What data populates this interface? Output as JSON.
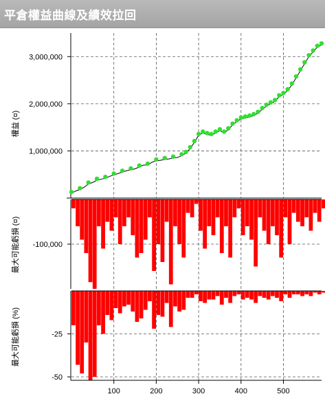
{
  "window": {
    "title": "平倉權益曲線及績效拉回"
  },
  "colors": {
    "equity_line": "#000000",
    "equity_marker": "#33dd33",
    "drawdown_fill": "#ff0000",
    "grid": "#555555"
  },
  "chart_data": [
    {
      "type": "line",
      "ylabel": "權益 (¤)",
      "yticks": [
        "3,000,000",
        "2,000,000",
        "1,000,000"
      ],
      "ytick_values": [
        3000000,
        2000000,
        1000000
      ],
      "ylim": [
        0,
        3500000
      ],
      "xlim": [
        0,
        590
      ],
      "x": [
        0,
        10,
        20,
        30,
        40,
        50,
        60,
        70,
        80,
        90,
        100,
        110,
        120,
        130,
        140,
        150,
        160,
        170,
        180,
        190,
        200,
        210,
        220,
        230,
        240,
        250,
        260,
        270,
        280,
        290,
        300,
        310,
        320,
        330,
        340,
        350,
        360,
        370,
        380,
        390,
        400,
        410,
        420,
        430,
        440,
        450,
        460,
        470,
        480,
        490,
        500,
        510,
        520,
        530,
        540,
        550,
        560,
        570,
        580,
        590
      ],
      "values": [
        100000,
        150000,
        180000,
        230000,
        300000,
        330000,
        380000,
        400000,
        420000,
        460000,
        490000,
        520000,
        550000,
        580000,
        600000,
        620000,
        660000,
        700000,
        700000,
        760000,
        790000,
        800000,
        820000,
        830000,
        850000,
        860000,
        900000,
        950000,
        1050000,
        1180000,
        1330000,
        1380000,
        1350000,
        1330000,
        1380000,
        1430000,
        1380000,
        1450000,
        1550000,
        1620000,
        1680000,
        1700000,
        1720000,
        1750000,
        1800000,
        1880000,
        1950000,
        2000000,
        2050000,
        2150000,
        2200000,
        2280000,
        2400000,
        2550000,
        2700000,
        2850000,
        3000000,
        3100000,
        3200000,
        3250000
      ]
    },
    {
      "type": "area",
      "ylabel": "最大可能虧損 (¤)",
      "yticks": [
        "-100,000"
      ],
      "ytick_values": [
        -100000
      ],
      "ylim": [
        -200000,
        0
      ],
      "xlim": [
        0,
        590
      ],
      "x": [
        0,
        10,
        20,
        30,
        40,
        50,
        60,
        70,
        80,
        90,
        100,
        110,
        120,
        130,
        140,
        150,
        160,
        170,
        180,
        190,
        200,
        210,
        220,
        230,
        240,
        250,
        260,
        270,
        280,
        290,
        300,
        310,
        320,
        330,
        340,
        350,
        360,
        370,
        380,
        390,
        400,
        410,
        420,
        430,
        440,
        450,
        460,
        470,
        480,
        490,
        500,
        510,
        520,
        530,
        540,
        550,
        560,
        570,
        580,
        590
      ],
      "values": [
        -20000,
        -60000,
        -90000,
        -120000,
        -185000,
        -200000,
        -60000,
        -110000,
        -50000,
        -70000,
        -40000,
        -100000,
        -60000,
        -40000,
        -80000,
        -130000,
        -120000,
        -90000,
        -40000,
        -160000,
        -100000,
        -140000,
        -50000,
        -190000,
        -60000,
        -100000,
        -130000,
        -30000,
        -40000,
        -10000,
        -70000,
        -110000,
        -60000,
        -80000,
        -40000,
        -120000,
        -60000,
        -130000,
        -40000,
        -20000,
        -80000,
        -60000,
        -90000,
        -150000,
        -40000,
        -70000,
        -100000,
        -60000,
        -80000,
        -130000,
        -40000,
        -100000,
        -30000,
        -50000,
        -60000,
        -40000,
        -70000,
        -30000,
        -50000,
        -20000
      ]
    },
    {
      "type": "area",
      "ylabel": "最大可能虧損 (%)",
      "yticks": [
        "-25",
        "-50"
      ],
      "ytick_values": [
        -25,
        -50
      ],
      "ylim": [
        -52,
        0
      ],
      "xticks": [
        "100",
        "200",
        "300",
        "400",
        "500"
      ],
      "xtick_values": [
        100,
        200,
        300,
        400,
        500
      ],
      "xlim": [
        0,
        590
      ],
      "x": [
        0,
        10,
        20,
        30,
        40,
        50,
        60,
        70,
        80,
        90,
        100,
        110,
        120,
        130,
        140,
        150,
        160,
        170,
        180,
        190,
        200,
        210,
        220,
        230,
        240,
        250,
        260,
        270,
        280,
        290,
        300,
        310,
        320,
        330,
        340,
        350,
        360,
        370,
        380,
        390,
        400,
        410,
        420,
        430,
        440,
        450,
        460,
        470,
        480,
        490,
        500,
        510,
        520,
        530,
        540,
        550,
        560,
        570,
        580,
        590
      ],
      "values": [
        -20,
        -43,
        -48,
        -30,
        -52,
        -50,
        -20,
        -25,
        -14,
        -17,
        -10,
        -13,
        -9,
        -8,
        -12,
        -18,
        -16,
        -11,
        -6,
        -22,
        -14,
        -15,
        -7,
        -21,
        -9,
        -12,
        -11,
        -4,
        -4,
        -2,
        -6,
        -7,
        -5,
        -5,
        -3,
        -8,
        -4,
        -7,
        -3,
        -2,
        -5,
        -4,
        -5,
        -7,
        -3,
        -4,
        -5,
        -3,
        -4,
        -6,
        -2,
        -4,
        -2,
        -2,
        -3,
        -2,
        -3,
        -1,
        -2,
        -1
      ]
    }
  ]
}
